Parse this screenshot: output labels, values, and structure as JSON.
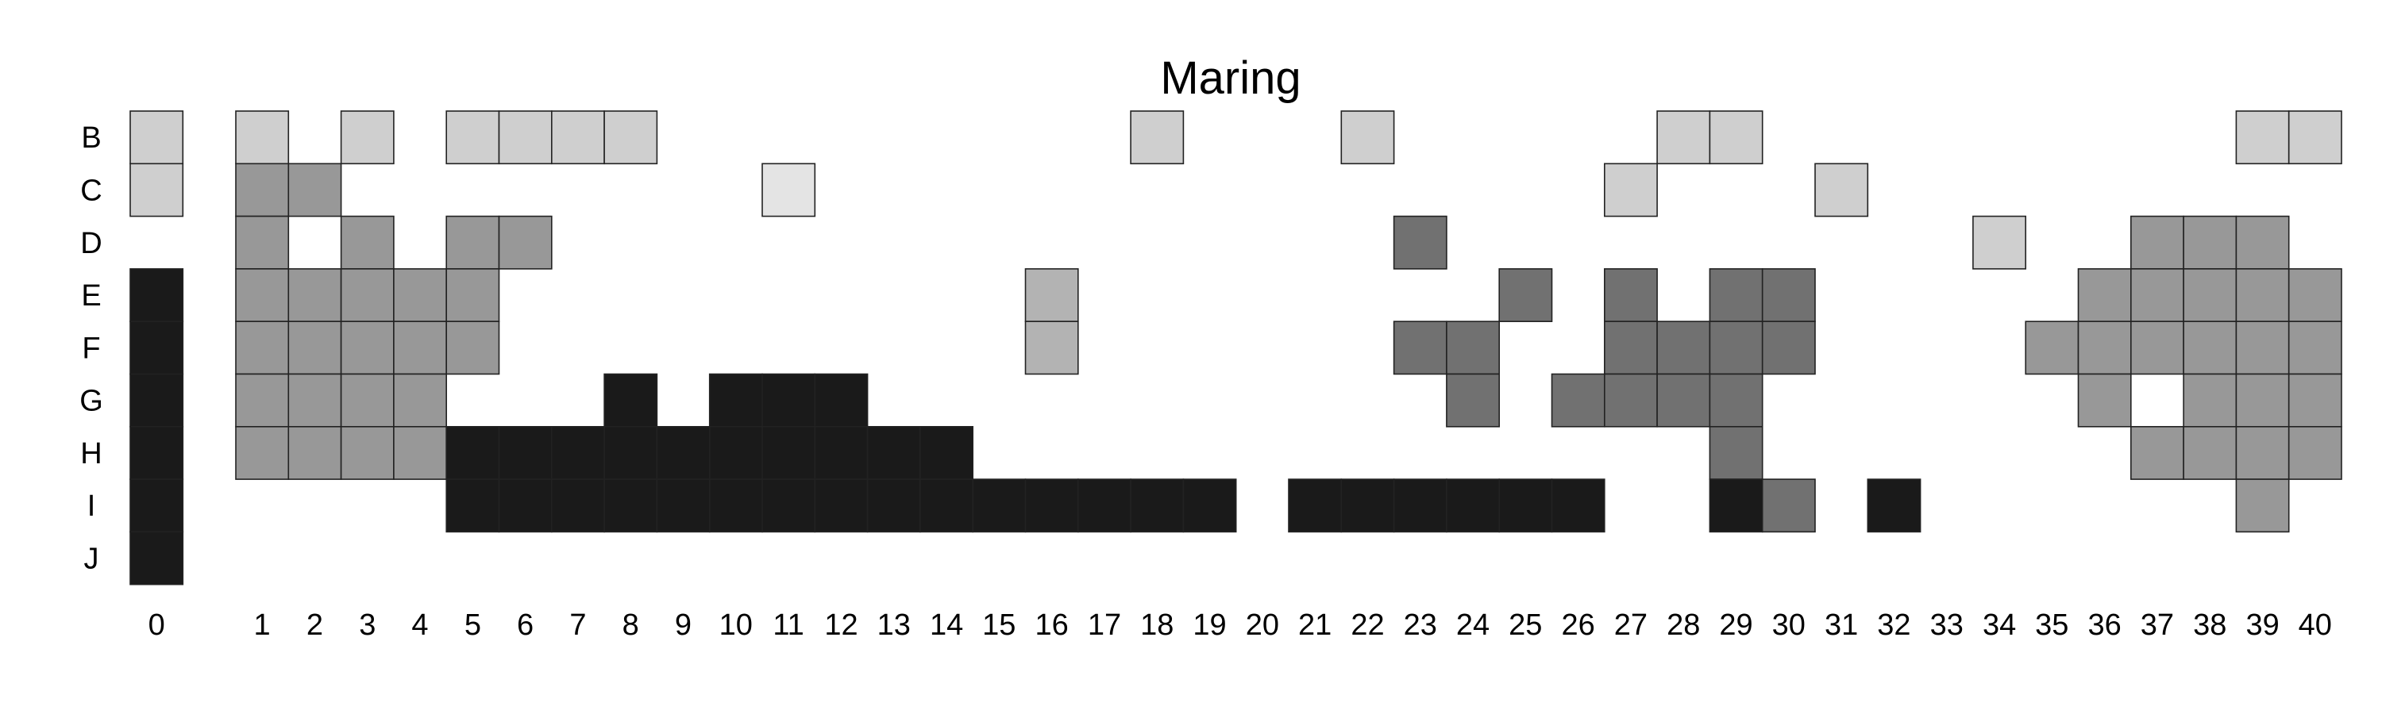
{
  "chart_data": {
    "type": "heatmap",
    "title": "Maring",
    "xlabel": "",
    "ylabel": "",
    "x_ticks": [
      "0",
      "1",
      "2",
      "3",
      "4",
      "5",
      "6",
      "7",
      "8",
      "9",
      "10",
      "11",
      "12",
      "13",
      "14",
      "15",
      "16",
      "17",
      "18",
      "19",
      "20",
      "21",
      "22",
      "23",
      "24",
      "25",
      "26",
      "27",
      "28",
      "29",
      "30",
      "31",
      "32",
      "33",
      "34",
      "35",
      "36",
      "37",
      "38",
      "39",
      "40"
    ],
    "y_ticks": [
      "B",
      "C",
      "D",
      "E",
      "F",
      "G",
      "H",
      "I",
      "J"
    ],
    "grid": false,
    "legend": "none",
    "shades": {
      "1": "#e4e4e4",
      "2": "#cfcfcf",
      "3": "#b3b3b3",
      "4": "#989898",
      "5": "#717171",
      "6": "#1a1a1a"
    },
    "cells": [
      {
        "row": "B",
        "cols": [
          0,
          1,
          3,
          5,
          6,
          7,
          8,
          18,
          22,
          28,
          29,
          39,
          40
        ],
        "level": 2
      },
      {
        "row": "C",
        "cols": [
          0,
          27,
          31
        ],
        "level": 2
      },
      {
        "row": "C",
        "cols": [
          11
        ],
        "level": 1
      },
      {
        "row": "C",
        "cols": [
          1,
          2
        ],
        "level": 4
      },
      {
        "row": "D",
        "cols": [
          34
        ],
        "level": 2
      },
      {
        "row": "D",
        "cols": [
          1,
          3,
          5,
          6,
          37,
          38,
          39
        ],
        "level": 4
      },
      {
        "row": "D",
        "cols": [
          23
        ],
        "level": 5
      },
      {
        "row": "E",
        "cols": [
          16
        ],
        "level": 3
      },
      {
        "row": "E",
        "cols": [
          1,
          2,
          3,
          4,
          5,
          36,
          37,
          38,
          39,
          40
        ],
        "level": 4
      },
      {
        "row": "E",
        "cols": [
          25,
          27,
          29,
          30
        ],
        "level": 5
      },
      {
        "row": "E",
        "cols": [
          0
        ],
        "level": 6
      },
      {
        "row": "F",
        "cols": [
          16
        ],
        "level": 3
      },
      {
        "row": "F",
        "cols": [
          1,
          2,
          3,
          4,
          5,
          35,
          36,
          37,
          38,
          39,
          40
        ],
        "level": 4
      },
      {
        "row": "F",
        "cols": [
          23,
          24,
          27,
          28,
          29,
          30
        ],
        "level": 5
      },
      {
        "row": "F",
        "cols": [
          0
        ],
        "level": 6
      },
      {
        "row": "G",
        "cols": [
          1,
          2,
          3,
          4,
          36,
          38,
          39,
          40
        ],
        "level": 4
      },
      {
        "row": "G",
        "cols": [
          24,
          26,
          27,
          28,
          29
        ],
        "level": 5
      },
      {
        "row": "G",
        "cols": [
          0,
          8,
          10,
          11,
          12
        ],
        "level": 6
      },
      {
        "row": "H",
        "cols": [
          1,
          2,
          3,
          4,
          37,
          38,
          39,
          40
        ],
        "level": 4
      },
      {
        "row": "H",
        "cols": [
          29
        ],
        "level": 5
      },
      {
        "row": "H",
        "cols": [
          0,
          5,
          6,
          7,
          8,
          9,
          10,
          11,
          12,
          13,
          14
        ],
        "level": 6
      },
      {
        "row": "I",
        "cols": [
          39
        ],
        "level": 4
      },
      {
        "row": "I",
        "cols": [
          30
        ],
        "level": 5
      },
      {
        "row": "I",
        "cols": [
          0,
          5,
          6,
          7,
          8,
          9,
          10,
          11,
          12,
          13,
          14,
          15,
          16,
          17,
          18,
          19,
          21,
          22,
          23,
          24,
          25,
          26,
          29,
          32
        ],
        "level": 6
      },
      {
        "row": "J",
        "cols": [
          0
        ],
        "level": 6
      }
    ]
  }
}
